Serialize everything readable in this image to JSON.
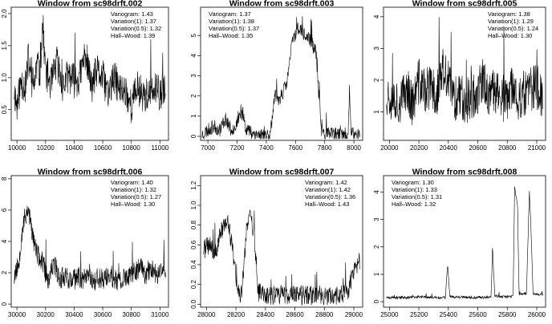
{
  "chart_data": [
    {
      "type": "line",
      "title": "Window from sc98drft.002",
      "xticks": [
        10000,
        10200,
        10400,
        10600,
        10800,
        11000
      ],
      "yticks": [
        0.5,
        1.0,
        1.5,
        2.0
      ],
      "xlim": [
        9960,
        11060
      ],
      "ylim": [
        0.02,
        2.1
      ],
      "annotations": [
        "Variogram: 1.43",
        "Variation(1): 1.37",
        "Variation(0.5): 1.32",
        "Hall–Wood: 1.39"
      ],
      "annotation_anchor": "top-right",
      "profile": [
        [
          9980,
          0.8
        ],
        [
          10000,
          0.55
        ],
        [
          10030,
          0.95
        ],
        [
          10060,
          0.85
        ],
        [
          10080,
          1.3
        ],
        [
          10100,
          0.95
        ],
        [
          10120,
          0.9
        ],
        [
          10140,
          1.2
        ],
        [
          10160,
          1.05
        ],
        [
          10180,
          1.85
        ],
        [
          10200,
          1.1
        ],
        [
          10240,
          0.9
        ],
        [
          10280,
          1.25
        ],
        [
          10320,
          0.85
        ],
        [
          10360,
          1.05
        ],
        [
          10400,
          0.95
        ],
        [
          10440,
          1.0
        ],
        [
          10480,
          1.4
        ],
        [
          10520,
          0.85
        ],
        [
          10560,
          1.1
        ],
        [
          10600,
          1.0
        ],
        [
          10640,
          0.75
        ],
        [
          10680,
          1.0
        ],
        [
          10720,
          0.8
        ],
        [
          10760,
          0.8
        ],
        [
          10800,
          0.55
        ],
        [
          10840,
          0.85
        ],
        [
          10880,
          0.75
        ],
        [
          10920,
          0.7
        ],
        [
          10960,
          0.8
        ],
        [
          11000,
          0.75
        ],
        [
          11040,
          0.8
        ]
      ],
      "noise": 0.28,
      "seed": 11
    },
    {
      "type": "line",
      "title": "Window from sc98drft.003",
      "xticks": [
        7000,
        7200,
        7400,
        7600,
        7800,
        8000
      ],
      "yticks": [
        0,
        1,
        2,
        3,
        4,
        5
      ],
      "xlim": [
        6950,
        8060
      ],
      "ylim": [
        -0.2,
        6.4
      ],
      "annotations": [
        "Variogram: 1.37",
        "Variation(1): 1.38",
        "Variation(0.5): 1.37",
        "Hall–Wood: 1.35"
      ],
      "annotation_anchor": "top-left",
      "profile": [
        [
          6960,
          0.1
        ],
        [
          7000,
          0.3
        ],
        [
          7040,
          0.5
        ],
        [
          7080,
          0.3
        ],
        [
          7120,
          0.9
        ],
        [
          7160,
          0.3
        ],
        [
          7200,
          0.6
        ],
        [
          7240,
          1.2
        ],
        [
          7260,
          0.4
        ],
        [
          7300,
          0.2
        ],
        [
          7340,
          0.1
        ],
        [
          7380,
          0.05
        ],
        [
          7420,
          0.1
        ],
        [
          7440,
          0.8
        ],
        [
          7460,
          2.0
        ],
        [
          7480,
          1.8
        ],
        [
          7500,
          2.0
        ],
        [
          7540,
          2.6
        ],
        [
          7580,
          4.8
        ],
        [
          7620,
          5.4
        ],
        [
          7660,
          5.0
        ],
        [
          7700,
          4.8
        ],
        [
          7740,
          4.2
        ],
        [
          7760,
          2.0
        ],
        [
          7780,
          0.2
        ],
        [
          7840,
          0.1
        ],
        [
          7880,
          0.1
        ],
        [
          7920,
          0.05
        ],
        [
          7960,
          0.15
        ],
        [
          7970,
          2.4
        ],
        [
          7980,
          0.1
        ],
        [
          8040,
          0.1
        ]
      ],
      "noise": 0.35,
      "seed": 23
    },
    {
      "type": "line",
      "title": "Window from sc98drft.005",
      "xticks": [
        20000,
        20200,
        20400,
        20600,
        20800,
        21000
      ],
      "yticks": [
        1,
        2,
        3,
        4
      ],
      "xlim": [
        19960,
        21060
      ],
      "ylim": [
        0.1,
        4.3
      ],
      "annotations": [
        "Variogram: 1.38",
        "Variation(1): 1.29",
        "Variation(0.5): 1.24",
        "Hall–Wood: 1.30"
      ],
      "annotation_anchor": "top-right",
      "profile": [
        [
          19980,
          1.6
        ],
        [
          20040,
          1.4
        ],
        [
          20080,
          1.3
        ],
        [
          20120,
          1.8
        ],
        [
          20160,
          1.2
        ],
        [
          20200,
          2.0
        ],
        [
          20240,
          1.6
        ],
        [
          20280,
          1.8
        ],
        [
          20320,
          1.5
        ],
        [
          20360,
          2.3
        ],
        [
          20400,
          1.9
        ],
        [
          20440,
          1.4
        ],
        [
          20480,
          1.6
        ],
        [
          20520,
          1.3
        ],
        [
          20560,
          1.5
        ],
        [
          20600,
          1.6
        ],
        [
          20640,
          2.0
        ],
        [
          20680,
          1.4
        ],
        [
          20720,
          1.7
        ],
        [
          20760,
          1.5
        ],
        [
          20800,
          1.3
        ],
        [
          20840,
          1.8
        ],
        [
          20880,
          1.4
        ],
        [
          20920,
          1.6
        ],
        [
          20960,
          1.7
        ],
        [
          21000,
          1.8
        ],
        [
          21040,
          1.5
        ]
      ],
      "noise": 0.75,
      "seed": 37
    },
    {
      "type": "line",
      "title": "Window from sc98drft.006",
      "xticks": [
        30000,
        30200,
        30400,
        30600,
        30800,
        31000
      ],
      "yticks": [
        0,
        2,
        4,
        6,
        8
      ],
      "xlim": [
        29960,
        31060
      ],
      "ylim": [
        -0.2,
        8.2
      ],
      "annotations": [
        "Variogram: 1.40",
        "Variation(1): 1.32",
        "Variation(0.5): 1.27",
        "Hall–Wood: 1.30"
      ],
      "annotation_anchor": "top-right",
      "profile": [
        [
          29980,
          1.8
        ],
        [
          30010,
          2.5
        ],
        [
          30040,
          5.0
        ],
        [
          30080,
          6.2
        ],
        [
          30100,
          4.8
        ],
        [
          30120,
          4.0
        ],
        [
          30140,
          3.2
        ],
        [
          30180,
          2.6
        ],
        [
          30220,
          1.4
        ],
        [
          30260,
          2.6
        ],
        [
          30300,
          1.6
        ],
        [
          30340,
          1.9
        ],
        [
          30380,
          1.4
        ],
        [
          30420,
          1.7
        ],
        [
          30460,
          1.6
        ],
        [
          30500,
          2.0
        ],
        [
          30540,
          1.5
        ],
        [
          30580,
          1.7
        ],
        [
          30620,
          1.6
        ],
        [
          30660,
          1.8
        ],
        [
          30700,
          1.4
        ],
        [
          30740,
          1.5
        ],
        [
          30780,
          1.8
        ],
        [
          30820,
          2.0
        ],
        [
          30860,
          2.4
        ],
        [
          30900,
          1.9
        ],
        [
          30940,
          2.3
        ],
        [
          30980,
          1.8
        ],
        [
          31020,
          2.5
        ],
        [
          31040,
          2.2
        ]
      ],
      "noise": 0.7,
      "seed": 53
    },
    {
      "type": "line",
      "title": "Window from sc98drft.007",
      "xticks": [
        28000,
        28200,
        28400,
        28600,
        28800,
        29000
      ],
      "yticks": [
        0.0,
        0.2,
        0.4,
        0.6,
        0.8,
        1.0,
        1.2
      ],
      "xlim": [
        27960,
        29060
      ],
      "ylim": [
        -0.03,
        1.3
      ],
      "annotations": [
        "Variogram: 1.42",
        "Variation(1): 1.42",
        "Variation(0.5): 1.36",
        "Hall–Wood: 1.43"
      ],
      "annotation_anchor": "top-right",
      "profile": [
        [
          27980,
          0.55
        ],
        [
          28020,
          0.6
        ],
        [
          28060,
          0.5
        ],
        [
          28100,
          0.75
        ],
        [
          28140,
          0.85
        ],
        [
          28180,
          0.55
        ],
        [
          28210,
          0.12
        ],
        [
          28240,
          0.1
        ],
        [
          28270,
          0.75
        ],
        [
          28300,
          0.9
        ],
        [
          28330,
          0.6
        ],
        [
          28350,
          0.12
        ],
        [
          28380,
          0.1
        ],
        [
          28440,
          0.08
        ],
        [
          28500,
          0.1
        ],
        [
          28560,
          0.08
        ],
        [
          28620,
          0.1
        ],
        [
          28680,
          0.08
        ],
        [
          28740,
          0.1
        ],
        [
          28800,
          0.09
        ],
        [
          28860,
          0.08
        ],
        [
          28920,
          0.1
        ],
        [
          28960,
          0.12
        ],
        [
          28990,
          0.3
        ],
        [
          29020,
          0.35
        ],
        [
          29040,
          0.45
        ]
      ],
      "noise": 0.1,
      "seed": 71
    },
    {
      "type": "line",
      "title": "Window from sc98drft.008",
      "xticks": [
        25000,
        25200,
        25400,
        25600,
        25800,
        26000
      ],
      "yticks": [
        0,
        1,
        2,
        3,
        4
      ],
      "xlim": [
        24960,
        26060
      ],
      "ylim": [
        -0.2,
        4.6
      ],
      "annotations": [
        "Variogram: 1.30",
        "Variation(1): 1.33",
        "Variation(0.5): 1.31",
        "Hall–Wood: 1.32"
      ],
      "annotation_anchor": "top-left",
      "profile": [
        [
          24980,
          0.15
        ],
        [
          25100,
          0.15
        ],
        [
          25200,
          0.18
        ],
        [
          25300,
          0.15
        ],
        [
          25380,
          0.15
        ],
        [
          25395,
          1.4
        ],
        [
          25410,
          0.18
        ],
        [
          25500,
          0.16
        ],
        [
          25600,
          0.15
        ],
        [
          25690,
          0.17
        ],
        [
          25700,
          2.0
        ],
        [
          25715,
          0.2
        ],
        [
          25800,
          0.18
        ],
        [
          25840,
          0.2
        ],
        [
          25850,
          4.2
        ],
        [
          25870,
          3.5
        ],
        [
          25880,
          0.25
        ],
        [
          25930,
          0.3
        ],
        [
          25950,
          4.0
        ],
        [
          25960,
          2.8
        ],
        [
          25975,
          0.3
        ],
        [
          26040,
          0.25
        ]
      ],
      "noise": 0.05,
      "seed": 89
    }
  ]
}
